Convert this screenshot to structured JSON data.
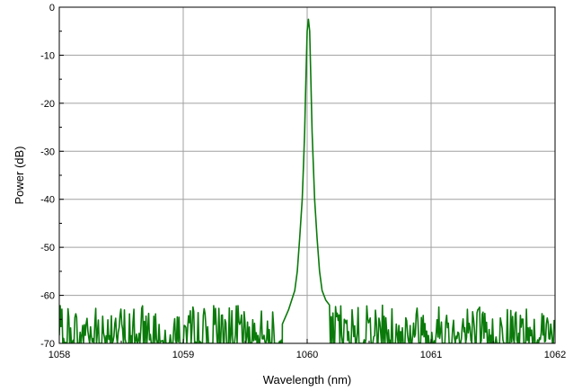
{
  "chart_data": {
    "type": "line",
    "title": "",
    "xlabel": "Wavelength (nm)",
    "ylabel": "Power (dB)",
    "xlim": [
      1058,
      1062
    ],
    "ylim": [
      -70,
      0
    ],
    "x_ticks": [
      1058,
      1059,
      1060,
      1061,
      1062
    ],
    "x_tick_labels": [
      "1058",
      "1059",
      "1060",
      "1061",
      "1062"
    ],
    "y_ticks": [
      0,
      -10,
      -20,
      -30,
      -40,
      -50,
      -60,
      -70
    ],
    "y_tick_labels": [
      "0",
      "-10",
      "-20",
      "-30",
      "-40",
      "-50",
      "-60",
      "-70"
    ],
    "grid": true,
    "legend": "none",
    "series": [
      {
        "color": "#0a7a0a",
        "noise_floor_dB": [
          -70,
          -62
        ],
        "x": [
          1059.8,
          1059.85,
          1059.9,
          1059.92,
          1059.94,
          1059.96,
          1059.97,
          1059.98,
          1059.99,
          1060.0,
          1060.01,
          1060.02,
          1060.03,
          1060.04,
          1060.05,
          1060.06,
          1060.08,
          1060.1,
          1060.12,
          1060.15,
          1060.18
        ],
        "y": [
          -66,
          -63,
          -59,
          -55,
          -48,
          -40,
          -33,
          -26,
          -15,
          -5,
          -2.5,
          -5,
          -15,
          -26,
          -33,
          -40,
          -48,
          -55,
          -59,
          -61,
          -62
        ]
      }
    ]
  }
}
